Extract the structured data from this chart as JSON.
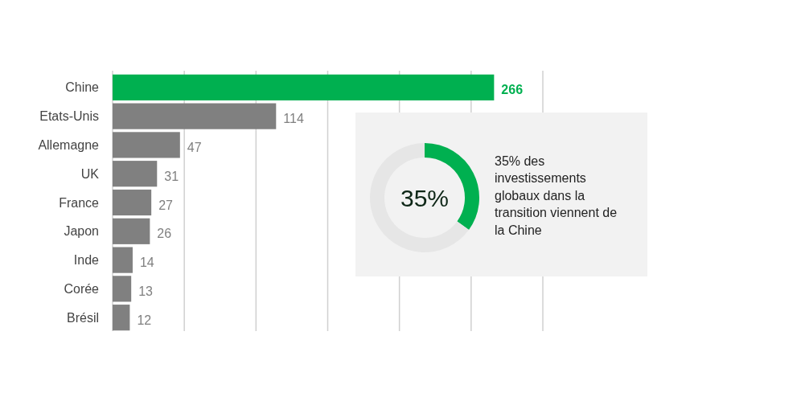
{
  "chart_data": [
    {
      "type": "bar",
      "orientation": "horizontal",
      "categories": [
        "Chine",
        "Etats-Unis",
        "Allemagne",
        "UK",
        "France",
        "Japon",
        "Inde",
        "Corée",
        "Brésil"
      ],
      "values": [
        266,
        114,
        47,
        31,
        27,
        26,
        14,
        13,
        12
      ],
      "colors": [
        "#00b050",
        "#808080",
        "#808080",
        "#808080",
        "#808080",
        "#808080",
        "#808080",
        "#808080",
        "#808080"
      ],
      "xlim": [
        0,
        300
      ],
      "xticks": [
        {
          "value": 50,
          "label": null
        },
        {
          "value": 100,
          "label": null
        },
        {
          "value": 150,
          "label": null
        },
        {
          "value": 200,
          "label": null
        },
        {
          "value": 250,
          "label": null
        },
        {
          "value": 300,
          "label": null
        }
      ],
      "grid": "x",
      "tick_labels": "y",
      "data_labels": true
    },
    {
      "type": "donut",
      "categories": [
        null,
        null
      ],
      "values": [
        35,
        65
      ],
      "colors": [
        "#00b050",
        "#e6e6e6"
      ],
      "annotations": [
        "35%",
        "35% des investissements globaux dans la transition viennent de la Chine"
      ]
    }
  ]
}
